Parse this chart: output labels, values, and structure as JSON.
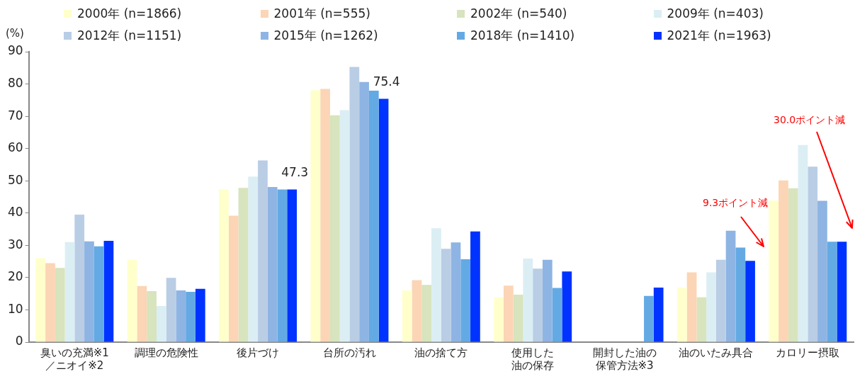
{
  "chart_data": {
    "type": "bar",
    "ylabel": "(%)",
    "ylim": [
      0,
      90
    ],
    "yticks": [
      0,
      10,
      20,
      30,
      40,
      50,
      60,
      70,
      80,
      90
    ],
    "grid": false,
    "legend": "top",
    "categories": [
      "臭いの充満※1／ニオイ※2",
      "調理の危険性",
      "後片づけ",
      "台所の汚れ",
      "油の捨て方",
      "使用した油の保存",
      "開封した油の保管方法※3",
      "油のいたみ具合",
      "カロリー摂取"
    ],
    "series": [
      {
        "name": "2000年 (n=1866)",
        "color": "#ffffcc",
        "values": [
          26.0,
          25.5,
          47.3,
          78.1,
          16.0,
          13.9,
          null,
          16.9,
          43.9
        ]
      },
      {
        "name": "2001年 (n=555)",
        "color": "#fbd5b5",
        "values": [
          24.5,
          17.4,
          39.2,
          78.5,
          19.2,
          17.5,
          null,
          21.6,
          50.1
        ]
      },
      {
        "name": "2002年 (n=540)",
        "color": "#d7e4bd",
        "values": [
          23.0,
          15.8,
          47.8,
          70.3,
          17.7,
          14.7,
          null,
          13.9,
          47.7
        ]
      },
      {
        "name": "2009年 (n=403)",
        "color": "#dbeef4",
        "values": [
          31.0,
          11.2,
          51.3,
          71.9,
          35.3,
          25.9,
          null,
          21.6,
          61.1
        ]
      },
      {
        "name": "2012年 (n=1151)",
        "color": "#b9cde5",
        "values": [
          39.5,
          19.9,
          56.3,
          85.3,
          28.9,
          22.8,
          null,
          25.5,
          54.4
        ]
      },
      {
        "name": "2015年 (n=1262)",
        "color": "#8eb4e3",
        "values": [
          31.2,
          16.0,
          48.1,
          80.6,
          30.9,
          25.5,
          null,
          34.5,
          43.8
        ]
      },
      {
        "name": "2018年 (n=1410)",
        "color": "#63aae4",
        "values": [
          29.7,
          15.6,
          47.3,
          77.9,
          25.7,
          16.8,
          14.3,
          29.3,
          31.1
        ]
      },
      {
        "name": "2021年 (n=1963)",
        "color": "#0033ff",
        "values": [
          31.4,
          16.5,
          47.3,
          75.4,
          34.3,
          21.9,
          16.9,
          25.2,
          31.1
        ],
        "value_labels": [
          null,
          null,
          "47.3",
          "75.4",
          null,
          null,
          null,
          null,
          null
        ]
      }
    ],
    "annotations": [
      "9.3ポイント減",
      "30.0ポイント減"
    ]
  }
}
